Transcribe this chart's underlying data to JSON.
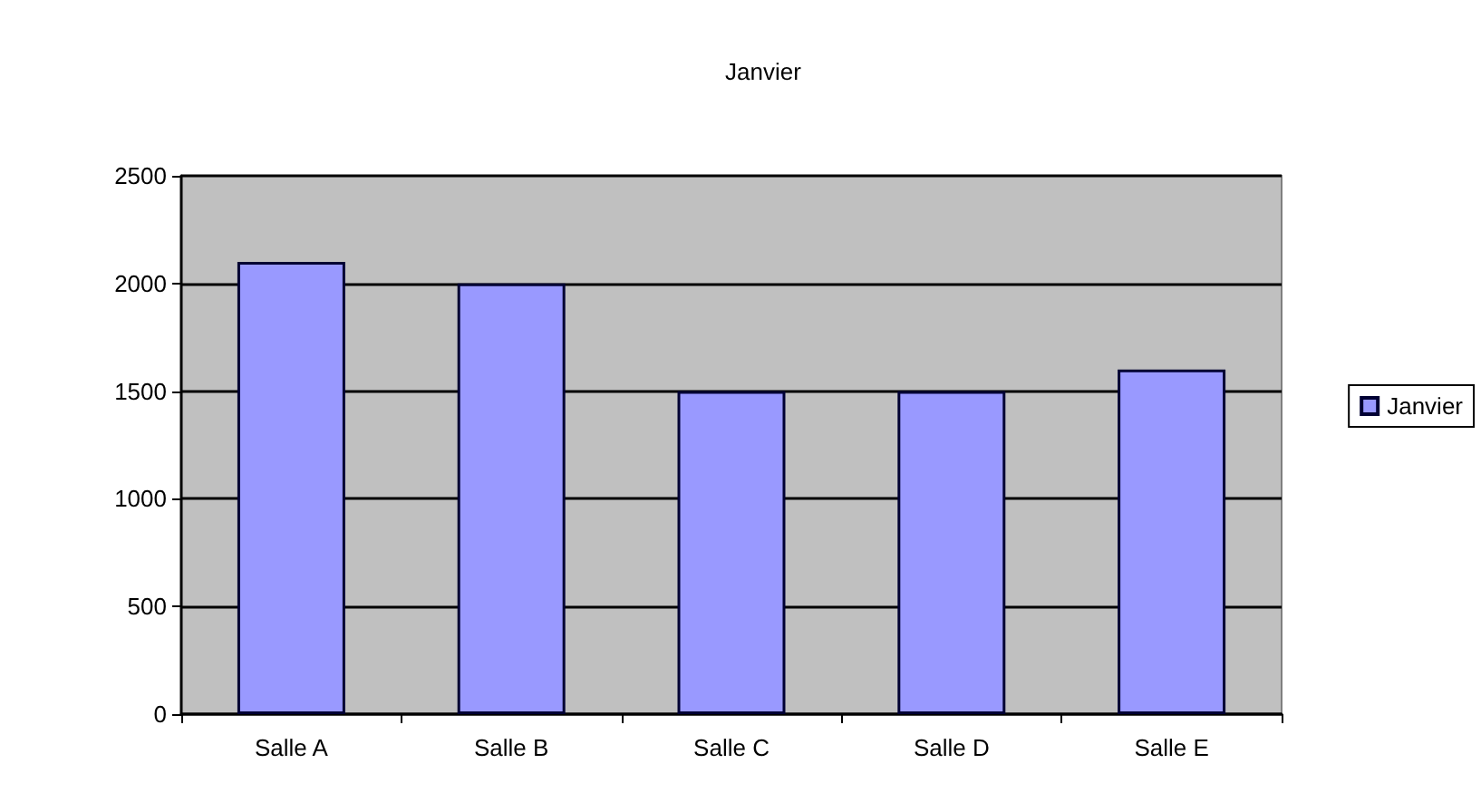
{
  "chart_data": {
    "type": "bar",
    "title": "Janvier",
    "categories": [
      "Salle A",
      "Salle B",
      "Salle C",
      "Salle D",
      "Salle E"
    ],
    "series": [
      {
        "name": "Janvier",
        "color": "#9999ff",
        "values": [
          2100,
          2000,
          1500,
          1500,
          1600
        ]
      }
    ],
    "ylim": [
      0,
      2500
    ],
    "yticks": [
      0,
      500,
      1000,
      1500,
      2000,
      2500
    ],
    "grid": "y",
    "legend": "right"
  }
}
